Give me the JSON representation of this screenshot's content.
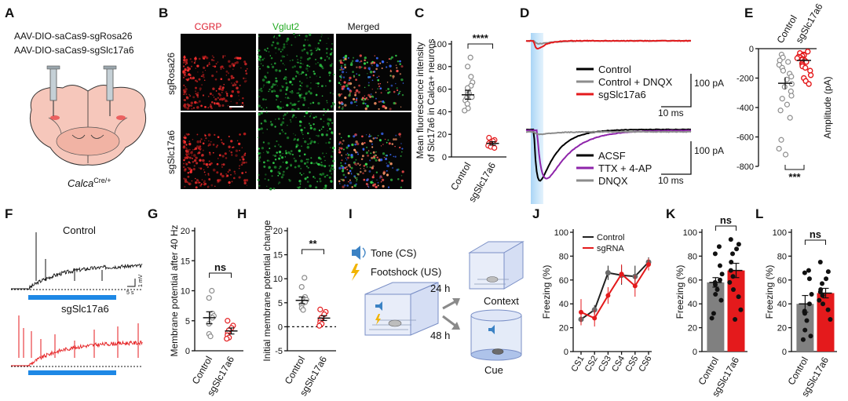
{
  "panel_letters": [
    "A",
    "B",
    "C",
    "D",
    "E",
    "F",
    "G",
    "H",
    "I",
    "J",
    "K",
    "L"
  ],
  "panel_a": {
    "vector_1": "AAV-DIO-saCas9-sgRosa26",
    "vector_2": "AAV-DIO-saCas9-sgSlc17a6",
    "mouse_line": "Calca",
    "mouse_sup": "Cre/+"
  },
  "panel_b": {
    "columns": [
      "CGRP",
      "Vglut2",
      "Merged"
    ],
    "rows": [
      "sgRosa26",
      "sgSlc17a6"
    ]
  },
  "panel_d": {
    "top_legend": [
      {
        "label": "Control",
        "color": "#000000"
      },
      {
        "label": "Control + DNQX",
        "color": "#8c8c8c"
      },
      {
        "label": "sgSlc17a6",
        "color": "#e41a1c"
      }
    ],
    "bottom_legend": [
      {
        "label": "ACSF",
        "color": "#000000"
      },
      {
        "label": "TTX + 4-AP",
        "color": "#8e24aa"
      },
      {
        "label": "DNQX",
        "color": "#8c8c8c"
      }
    ],
    "scale_amp": "100 pA",
    "scale_time": "10 ms"
  },
  "panel_f": {
    "control_label": "Control",
    "sg_label": "sgSlc17a6",
    "scale_time": "5 s",
    "scale_volt": "1 mV"
  },
  "panel_i": {
    "tone_label": "Tone (CS)",
    "shock_label": "Footshock (US)",
    "delay_1": "24 h",
    "delay_2": "48 h",
    "context_label": "Context",
    "cue_label": "Cue"
  },
  "colors": {
    "control": "#8c8c8c",
    "sg": "#e41a1c",
    "blue_bar": "#1e88e5",
    "purple": "#8e24aa"
  },
  "chart_data": [
    {
      "panel": "C",
      "type": "scatter",
      "ylabel_1": "Mean fluorescence intensity",
      "ylabel_2": "of Slc17a6 in Calca+ neurons",
      "categories": [
        "Control",
        "sgSlc17a6"
      ],
      "ylim": [
        0,
        100
      ],
      "yticks": [
        0,
        20,
        40,
        60,
        80,
        100
      ],
      "series": [
        {
          "name": "Control",
          "mean": 55,
          "sem": 4,
          "points": [
            88,
            80,
            71,
            66,
            63,
            61,
            57,
            56,
            55,
            53,
            52,
            50,
            47,
            43,
            41
          ]
        },
        {
          "name": "sgSlc17a6",
          "mean": 12,
          "sem": 1.5,
          "points": [
            17,
            15,
            14,
            13,
            12,
            12,
            11,
            10,
            9,
            8
          ]
        }
      ],
      "significance": "****"
    },
    {
      "panel": "E",
      "type": "scatter",
      "ylabel": "Amplitude (pA)",
      "categories": [
        "Control",
        "sgSlc17a6"
      ],
      "ylim": [
        -800,
        0
      ],
      "yticks": [
        0,
        -200,
        -400,
        -600,
        -800
      ],
      "series": [
        {
          "name": "Control",
          "mean": -235,
          "sem": 40,
          "points": [
            -40,
            -60,
            -80,
            -90,
            -110,
            -130,
            -150,
            -170,
            -190,
            -210,
            -240,
            -260,
            -290,
            -320,
            -340,
            -380,
            -420,
            -470,
            -620,
            -680,
            -720
          ]
        },
        {
          "name": "sgSlc17a6",
          "mean": -80,
          "sem": 12,
          "points": [
            -20,
            -30,
            -40,
            -45,
            -50,
            -55,
            -60,
            -65,
            -70,
            -75,
            -80,
            -90,
            -100,
            -110,
            -120,
            -130,
            -150,
            -180,
            -200,
            -220,
            -240
          ]
        }
      ],
      "significance": "***"
    },
    {
      "panel": "G",
      "type": "scatter",
      "ylabel": "Membrane potential after 40 Hz",
      "categories": [
        "Control",
        "sgSlc17a6"
      ],
      "ylim": [
        0,
        20
      ],
      "yticks": [
        0,
        5,
        10,
        15,
        20
      ],
      "series": [
        {
          "name": "Control",
          "mean": 5.5,
          "sem": 1.0,
          "points": [
            10,
            8.8,
            6.2,
            5.8,
            5.5,
            4.5,
            2.8,
            2.4
          ]
        },
        {
          "name": "sgSlc17a6",
          "mean": 3.3,
          "sem": 0.5,
          "points": [
            5.0,
            4.2,
            3.8,
            3.4,
            3.0,
            2.6,
            2.2,
            2.0
          ]
        }
      ],
      "significance": "ns"
    },
    {
      "panel": "H",
      "type": "scatter",
      "ylabel": "Initial membrane potential change",
      "categories": [
        "Control",
        "sgSlc17a6"
      ],
      "ylim": [
        -5,
        20
      ],
      "yticks": [
        -5,
        0,
        5,
        10,
        15,
        20
      ],
      "series": [
        {
          "name": "Control",
          "mean": 5.5,
          "sem": 0.7,
          "points": [
            10.2,
            8.3,
            6.2,
            5.6,
            5.1,
            4.6,
            3.9,
            3.5
          ]
        },
        {
          "name": "sgSlc17a6",
          "mean": 1.8,
          "sem": 0.5,
          "points": [
            3.6,
            3.1,
            2.6,
            1.9,
            1.4,
            0.9,
            0.6,
            0.2
          ]
        }
      ],
      "significance": "**"
    },
    {
      "panel": "J",
      "type": "line",
      "ylabel": "Freezing (%)",
      "categories": [
        "CS1",
        "CS2",
        "CS3",
        "CS4",
        "CS5",
        "CS6"
      ],
      "ylim": [
        0,
        100
      ],
      "yticks": [
        0,
        20,
        40,
        60,
        80,
        100
      ],
      "series": [
        {
          "name": "Control",
          "color": "#222222",
          "values": [
            27,
            35,
            66,
            64,
            63,
            75
          ],
          "errors": [
            3,
            4,
            6,
            8,
            9,
            4
          ]
        },
        {
          "name": "sgRNA",
          "color": "#e41a1c",
          "values": [
            33,
            28,
            47,
            65,
            55,
            73
          ],
          "errors": [
            11,
            7,
            7,
            8,
            9,
            5
          ]
        }
      ]
    },
    {
      "panel": "K",
      "type": "bar",
      "ylabel": "Freezing (%)",
      "categories": [
        "Control",
        "sgSlc17a6"
      ],
      "ylim": [
        0,
        100
      ],
      "yticks": [
        0,
        20,
        40,
        60,
        80,
        100
      ],
      "series": [
        {
          "name": "Control",
          "mean": 58,
          "sem": 4,
          "points": [
            88,
            82,
            72,
            65,
            60,
            58,
            56,
            52,
            48,
            43,
            32,
            28
          ]
        },
        {
          "name": "sgSlc17a6",
          "mean": 68,
          "sem": 6,
          "points": [
            94,
            90,
            86,
            82,
            75,
            68,
            63,
            58,
            52,
            46,
            35,
            27
          ]
        }
      ],
      "significance": "ns"
    },
    {
      "panel": "L",
      "type": "bar",
      "ylabel": "Freezing (%)",
      "categories": [
        "Control",
        "sgSlc17a6"
      ],
      "ylim": [
        0,
        100
      ],
      "yticks": [
        0,
        20,
        40,
        60,
        80,
        100
      ],
      "series": [
        {
          "name": "Control",
          "mean": 40,
          "sem": 7,
          "points": [
            68,
            66,
            61,
            48,
            40,
            34,
            32,
            26,
            18,
            13,
            10
          ]
        },
        {
          "name": "sgSlc17a6",
          "mean": 49,
          "sem": 4,
          "points": [
            75,
            67,
            61,
            57,
            52,
            50,
            47,
            43,
            40,
            35,
            27
          ]
        }
      ],
      "significance": "ns"
    }
  ]
}
